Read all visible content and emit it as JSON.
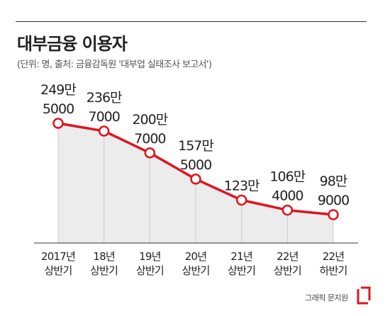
{
  "header": {
    "title": "대부금융 이용자",
    "subtitle": "(단위: 명, 출처: 금융감독원 '대부업 실태조사 보고서')"
  },
  "chart_data": {
    "type": "area",
    "categories": [
      [
        "2017년",
        "상반기"
      ],
      [
        "18년",
        "상반기"
      ],
      [
        "19년",
        "상반기"
      ],
      [
        "20년",
        "상반기"
      ],
      [
        "21년",
        "상반기"
      ],
      [
        "22년",
        "상반기"
      ],
      [
        "22년",
        "하반기"
      ]
    ],
    "values": [
      2495000,
      2367000,
      2007000,
      1575000,
      1230000,
      1064000,
      989000
    ],
    "value_labels": [
      [
        "249만",
        "5000"
      ],
      [
        "236만",
        "7000"
      ],
      [
        "200만",
        "7000"
      ],
      [
        "157만",
        "5000"
      ],
      [
        "123만"
      ],
      [
        "106만",
        "4000"
      ],
      [
        "98만",
        "9000"
      ]
    ],
    "colors": {
      "line": "#e0141e",
      "area": "#ececec",
      "grid": "#cccccc",
      "baseline": "#333333"
    }
  },
  "footer": {
    "credit": "그래픽 문지원"
  }
}
